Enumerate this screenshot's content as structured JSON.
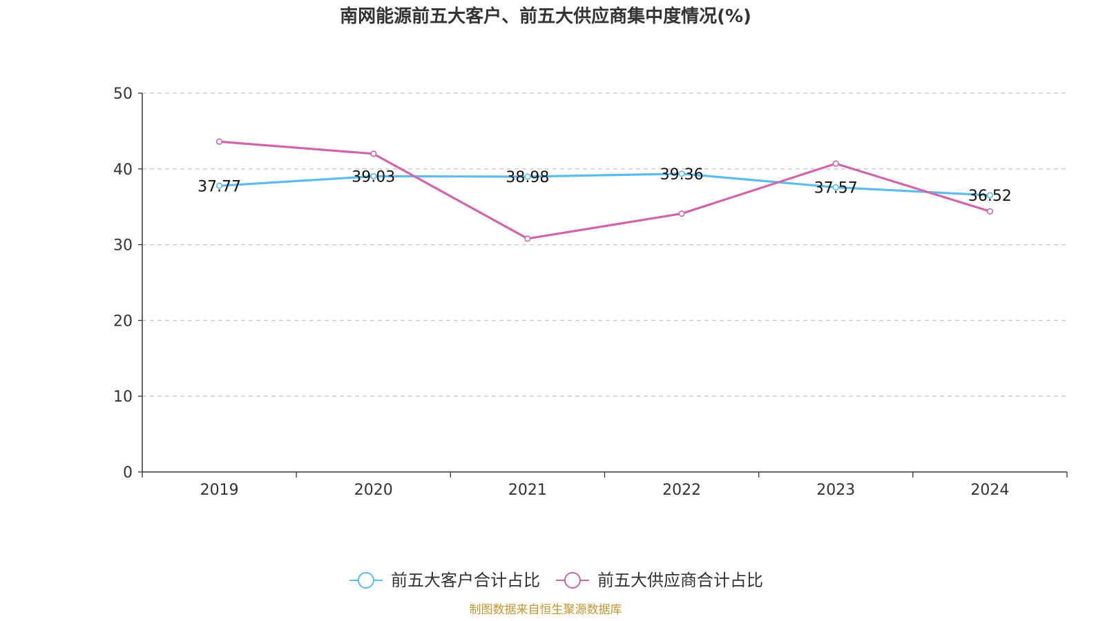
{
  "chart_data": {
    "type": "line",
    "title": "南网能源前五大客户、前五大供应商集中度情况(%)",
    "categories": [
      "2019",
      "2020",
      "2021",
      "2022",
      "2023",
      "2024"
    ],
    "ylim": [
      0,
      50
    ],
    "yticks": [
      0,
      10,
      20,
      30,
      40,
      50
    ],
    "grid": true,
    "legend_position": "bottom",
    "series": [
      {
        "name": "前五大客户合计占比",
        "color": "#5bbcf0",
        "values": [
          37.77,
          39.03,
          38.98,
          39.36,
          37.57,
          36.52
        ],
        "labels": [
          "37.77",
          "39.03",
          "38.98",
          "39.36",
          "37.57",
          "36.52"
        ]
      },
      {
        "name": "前五大供应商合计占比",
        "color": "#d264ac",
        "values": [
          43.6,
          42.0,
          30.8,
          34.1,
          40.7,
          34.4
        ]
      }
    ]
  },
  "source": {
    "text": "制图数据来自恒生聚源数据库",
    "color": "#c8962e"
  }
}
